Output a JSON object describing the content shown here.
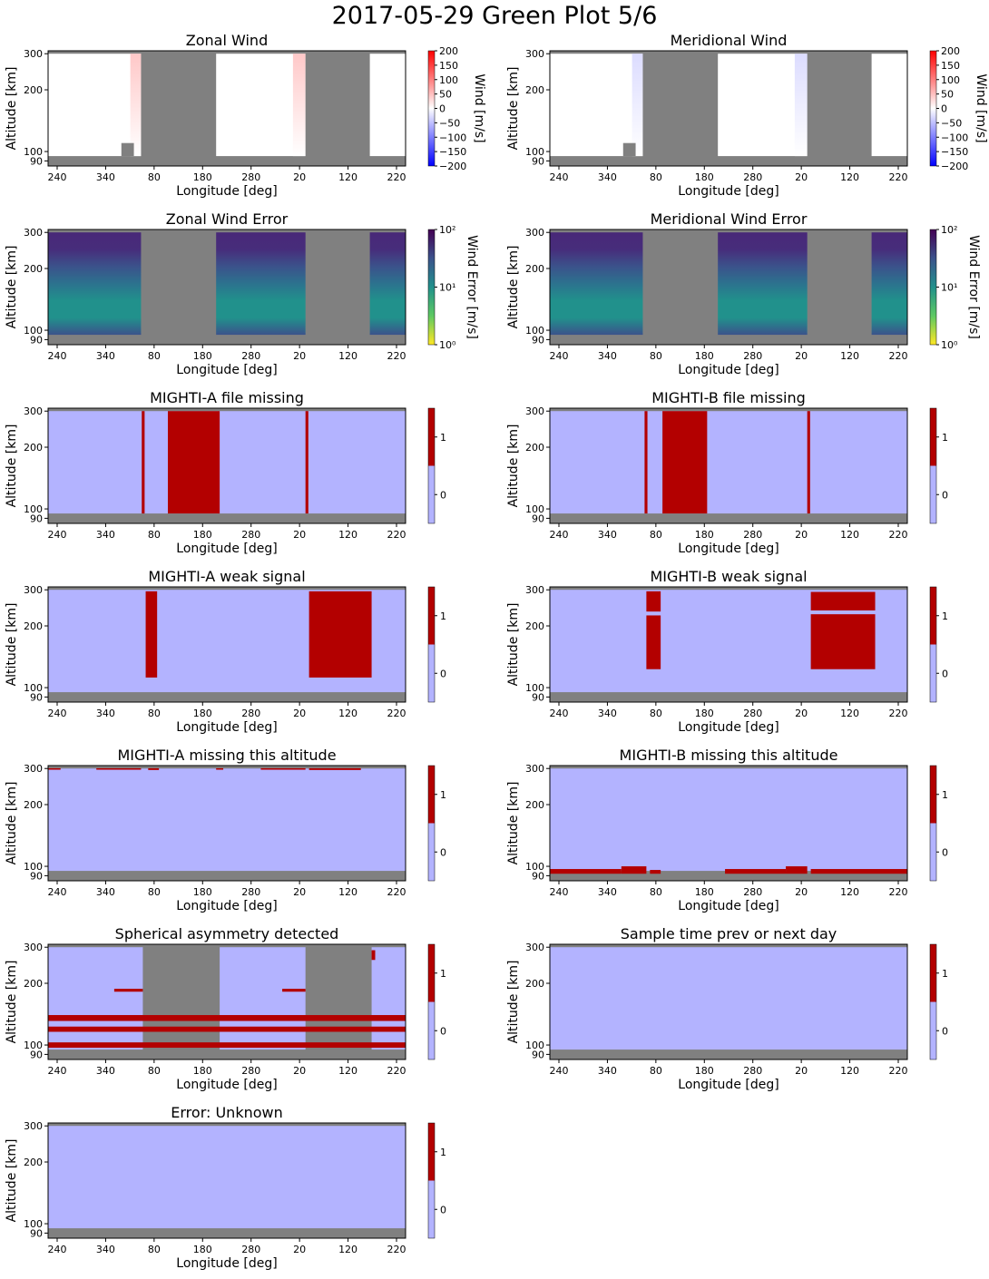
{
  "figure": {
    "title": "2017-05-29 Green Plot 5/6",
    "colors": {
      "missing": "#808080",
      "flag_false": "#b3b3ff",
      "flag_true": "#b30000",
      "wind_base": "#ffffff"
    }
  },
  "chart_data": [
    {
      "id": "zonal-wind",
      "type": "heatmap",
      "title": "Zonal Wind",
      "xlabel": "Longitude [deg]",
      "ylabel": "Altitude [km]",
      "xticklabels": [
        "240",
        "340",
        "80",
        "180",
        "280",
        "20",
        "120",
        "220"
      ],
      "yticklabels": [
        "90",
        "100",
        "200",
        "300"
      ],
      "ylim": [
        85,
        310
      ],
      "colorbar": {
        "kind": "diverging",
        "label": "Wind [m/s]",
        "range": [
          -200,
          200
        ],
        "ticklabels": [
          "200",
          "150",
          "100",
          "50",
          "0",
          "−50",
          "−100",
          "−150",
          "−200"
        ],
        "cmap": [
          "#0000ff",
          "#ffffff",
          "#ff0000"
        ]
      },
      "gaps": [
        [
          0.26,
          0.47
        ],
        [
          0.72,
          0.9
        ]
      ],
      "small_gaps_low": [
        [
          0.205,
          0.24
        ]
      ],
      "tinted_columns": [
        {
          "x": [
            0.23,
            0.26
          ],
          "color": "#ffc8c8"
        },
        {
          "x": [
            0.685,
            0.72
          ],
          "color": "#ffc8c8"
        }
      ]
    },
    {
      "id": "meridional-wind",
      "type": "heatmap",
      "title": "Meridional Wind",
      "xlabel": "Longitude [deg]",
      "ylabel": "Altitude [km]",
      "xticklabels": [
        "240",
        "340",
        "80",
        "180",
        "280",
        "20",
        "120",
        "220"
      ],
      "yticklabels": [
        "90",
        "100",
        "200",
        "300"
      ],
      "ylim": [
        85,
        310
      ],
      "colorbar": {
        "kind": "diverging",
        "label": "Wind [m/s]",
        "range": [
          -200,
          200
        ],
        "ticklabels": [
          "200",
          "150",
          "100",
          "50",
          "0",
          "−50",
          "−100",
          "−150",
          "−200"
        ],
        "cmap": [
          "#0000ff",
          "#ffffff",
          "#ff0000"
        ]
      },
      "gaps": [
        [
          0.26,
          0.47
        ],
        [
          0.72,
          0.9
        ]
      ],
      "small_gaps_low": [
        [
          0.205,
          0.24
        ]
      ],
      "tinted_columns": [
        {
          "x": [
            0.23,
            0.26
          ],
          "color": "#dcdcff"
        },
        {
          "x": [
            0.685,
            0.72
          ],
          "color": "#dcdcff"
        }
      ]
    },
    {
      "id": "zonal-wind-error",
      "type": "heatmap",
      "title": "Zonal Wind Error",
      "xlabel": "Longitude [deg]",
      "ylabel": "Altitude [km]",
      "xticklabels": [
        "240",
        "340",
        "80",
        "180",
        "280",
        "20",
        "120",
        "220"
      ],
      "yticklabels": [
        "90",
        "100",
        "200",
        "300"
      ],
      "ylim": [
        85,
        310
      ],
      "colorbar": {
        "kind": "log",
        "label": "Wind Error [m/s]",
        "range": [
          1,
          100
        ],
        "ticklabels": [
          "10²",
          "10¹",
          "10⁰"
        ],
        "cmap": [
          "#fde725",
          "#5ec962",
          "#21918c",
          "#3b528b",
          "#440154"
        ]
      },
      "gaps": [
        [
          0.26,
          0.47
        ],
        [
          0.72,
          0.9
        ]
      ],
      "green_strips": [
        [
          0.26,
          0.305
        ],
        [
          0.72,
          0.9
        ]
      ]
    },
    {
      "id": "meridional-wind-error",
      "type": "heatmap",
      "title": "Meridional Wind Error",
      "xlabel": "Longitude [deg]",
      "ylabel": "Altitude [km]",
      "xticklabels": [
        "240",
        "340",
        "80",
        "180",
        "280",
        "20",
        "120",
        "220"
      ],
      "yticklabels": [
        "90",
        "100",
        "200",
        "300"
      ],
      "ylim": [
        85,
        310
      ],
      "colorbar": {
        "kind": "log",
        "label": "Wind Error [m/s]",
        "range": [
          1,
          100
        ],
        "ticklabels": [
          "10²",
          "10¹",
          "10⁰"
        ],
        "cmap": [
          "#fde725",
          "#5ec962",
          "#21918c",
          "#3b528b",
          "#440154"
        ]
      },
      "gaps": [
        [
          0.26,
          0.47
        ],
        [
          0.72,
          0.9
        ]
      ],
      "green_strips": [
        [
          0.26,
          0.305
        ],
        [
          0.72,
          0.9
        ]
      ]
    },
    {
      "id": "mighti-a-file-missing",
      "type": "heatmap",
      "title": "MIGHTI-A file missing",
      "xlabel": "Longitude [deg]",
      "ylabel": "Altitude [km]",
      "xticklabels": [
        "240",
        "340",
        "80",
        "180",
        "280",
        "20",
        "120",
        "220"
      ],
      "yticklabels": [
        "90",
        "100",
        "200",
        "300"
      ],
      "ylim": [
        85,
        310
      ],
      "colorbar": {
        "kind": "binary",
        "ticklabels": [
          "1",
          "0"
        ]
      },
      "flag_rects": [
        {
          "x": [
            0.262,
            0.27
          ],
          "alt": [
            95,
            300
          ]
        },
        {
          "x": [
            0.335,
            0.48
          ],
          "alt": [
            95,
            300
          ]
        },
        {
          "x": [
            0.72,
            0.728
          ],
          "alt": [
            95,
            300
          ]
        }
      ]
    },
    {
      "id": "mighti-b-file-missing",
      "type": "heatmap",
      "title": "MIGHTI-B file missing",
      "xlabel": "Longitude [deg]",
      "ylabel": "Altitude [km]",
      "xticklabels": [
        "240",
        "340",
        "80",
        "180",
        "280",
        "20",
        "120",
        "220"
      ],
      "yticklabels": [
        "90",
        "100",
        "200",
        "300"
      ],
      "ylim": [
        85,
        310
      ],
      "colorbar": {
        "kind": "binary",
        "ticklabels": [
          "1",
          "0"
        ]
      },
      "flag_rects": [
        {
          "x": [
            0.265,
            0.273
          ],
          "alt": [
            95,
            300
          ]
        },
        {
          "x": [
            0.315,
            0.44
          ],
          "alt": [
            95,
            300
          ]
        },
        {
          "x": [
            0.72,
            0.728
          ],
          "alt": [
            95,
            300
          ]
        }
      ]
    },
    {
      "id": "mighti-a-weak-signal",
      "type": "heatmap",
      "title": "MIGHTI-A weak signal",
      "xlabel": "Longitude [deg]",
      "ylabel": "Altitude [km]",
      "xticklabels": [
        "240",
        "340",
        "80",
        "180",
        "280",
        "20",
        "120",
        "220"
      ],
      "yticklabels": [
        "90",
        "100",
        "200",
        "300"
      ],
      "ylim": [
        85,
        310
      ],
      "colorbar": {
        "kind": "binary",
        "ticklabels": [
          "1",
          "0"
        ]
      },
      "flag_rects": [
        {
          "x": [
            0.273,
            0.305
          ],
          "alt": [
            112,
            295
          ]
        },
        {
          "x": [
            0.73,
            0.905
          ],
          "alt": [
            112,
            295
          ]
        }
      ]
    },
    {
      "id": "mighti-b-weak-signal",
      "type": "heatmap",
      "title": "MIGHTI-B weak signal",
      "xlabel": "Longitude [deg]",
      "ylabel": "Altitude [km]",
      "xticklabels": [
        "240",
        "340",
        "80",
        "180",
        "280",
        "20",
        "120",
        "220"
      ],
      "yticklabels": [
        "90",
        "100",
        "200",
        "300"
      ],
      "ylim": [
        85,
        310
      ],
      "colorbar": {
        "kind": "binary",
        "ticklabels": [
          "1",
          "0"
        ]
      },
      "flag_rects": [
        {
          "x": [
            0.27,
            0.31
          ],
          "alt": [
            235,
            295
          ]
        },
        {
          "x": [
            0.27,
            0.31
          ],
          "alt": [
            123,
            225
          ]
        },
        {
          "x": [
            0.73,
            0.91
          ],
          "alt": [
            238,
            293
          ]
        },
        {
          "x": [
            0.73,
            0.91
          ],
          "alt": [
            123,
            228
          ]
        }
      ]
    },
    {
      "id": "mighti-a-missing-altitude",
      "type": "heatmap",
      "title": "MIGHTI-A missing this altitude",
      "xlabel": "Longitude [deg]",
      "ylabel": "Altitude [km]",
      "xticklabels": [
        "240",
        "340",
        "80",
        "180",
        "280",
        "20",
        "120",
        "220"
      ],
      "yticklabels": [
        "90",
        "100",
        "200",
        "300"
      ],
      "ylim": [
        85,
        310
      ],
      "colorbar": {
        "kind": "binary",
        "ticklabels": [
          "1",
          "0"
        ]
      },
      "flag_rects": [
        {
          "x": [
            0.0,
            0.035
          ],
          "alt": [
            296,
            301
          ]
        },
        {
          "x": [
            0.135,
            0.26
          ],
          "alt": [
            296,
            301
          ]
        },
        {
          "x": [
            0.28,
            0.31
          ],
          "alt": [
            295,
            301
          ]
        },
        {
          "x": [
            0.47,
            0.49
          ],
          "alt": [
            296,
            301
          ]
        },
        {
          "x": [
            0.595,
            0.72
          ],
          "alt": [
            296,
            301
          ]
        },
        {
          "x": [
            0.73,
            0.875
          ],
          "alt": [
            295,
            301
          ]
        }
      ]
    },
    {
      "id": "mighti-b-missing-altitude",
      "type": "heatmap",
      "title": "MIGHTI-B missing this altitude",
      "xlabel": "Longitude [deg]",
      "ylabel": "Altitude [km]",
      "xticklabels": [
        "240",
        "340",
        "80",
        "180",
        "280",
        "20",
        "120",
        "220"
      ],
      "yticklabels": [
        "90",
        "100",
        "200",
        "300"
      ],
      "ylim": [
        85,
        310
      ],
      "colorbar": {
        "kind": "binary",
        "ticklabels": [
          "1",
          "0"
        ]
      },
      "flag_rects": [
        {
          "x": [
            0.0,
            0.2
          ],
          "alt": [
            92,
            97
          ]
        },
        {
          "x": [
            0.2,
            0.27
          ],
          "alt": [
            92,
            100
          ]
        },
        {
          "x": [
            0.28,
            0.31
          ],
          "alt": [
            92,
            96
          ]
        },
        {
          "x": [
            0.49,
            0.66
          ],
          "alt": [
            92,
            97
          ]
        },
        {
          "x": [
            0.66,
            0.72
          ],
          "alt": [
            92,
            100
          ]
        },
        {
          "x": [
            0.73,
            1.0
          ],
          "alt": [
            92,
            97
          ]
        }
      ]
    },
    {
      "id": "spherical-asymmetry",
      "type": "heatmap",
      "title": "Spherical asymmetry detected",
      "xlabel": "Longitude [deg]",
      "ylabel": "Altitude [km]",
      "xticklabels": [
        "240",
        "340",
        "80",
        "180",
        "280",
        "20",
        "120",
        "220"
      ],
      "yticklabels": [
        "90",
        "100",
        "200",
        "300"
      ],
      "ylim": [
        85,
        310
      ],
      "gaps": [
        [
          0.265,
          0.48
        ],
        [
          0.72,
          0.905
        ]
      ],
      "colorbar": {
        "kind": "binary",
        "ticklabels": [
          "1",
          "0"
        ]
      },
      "flag_rects": [
        {
          "x": [
            0.0,
            1.0
          ],
          "alt": [
            97,
            103
          ]
        },
        {
          "x": [
            0.0,
            1.0
          ],
          "alt": [
            116,
            123
          ]
        },
        {
          "x": [
            0.0,
            1.0
          ],
          "alt": [
            131,
            140
          ]
        },
        {
          "x": [
            0.185,
            0.265
          ],
          "alt": [
            182,
            188
          ]
        },
        {
          "x": [
            0.655,
            0.72
          ],
          "alt": [
            182,
            188
          ]
        },
        {
          "x": [
            0.905,
            0.915
          ],
          "alt": [
            260,
            290
          ]
        }
      ]
    },
    {
      "id": "sample-time-prev-next-day",
      "type": "heatmap",
      "title": "Sample time prev or next day",
      "xlabel": "Longitude [deg]",
      "ylabel": "Altitude [km]",
      "xticklabels": [
        "240",
        "340",
        "80",
        "180",
        "280",
        "20",
        "120",
        "220"
      ],
      "yticklabels": [
        "90",
        "100",
        "200",
        "300"
      ],
      "ylim": [
        85,
        310
      ],
      "colorbar": {
        "kind": "binary",
        "ticklabels": [
          "1",
          "0"
        ]
      },
      "flag_rects": []
    },
    {
      "id": "error-unknown",
      "type": "heatmap",
      "title": "Error: Unknown",
      "xlabel": "Longitude [deg]",
      "ylabel": "Altitude [km]",
      "xticklabels": [
        "240",
        "340",
        "80",
        "180",
        "280",
        "20",
        "120",
        "220"
      ],
      "yticklabels": [
        "90",
        "100",
        "200",
        "300"
      ],
      "ylim": [
        85,
        310
      ],
      "colorbar": {
        "kind": "binary",
        "ticklabels": [
          "1",
          "0"
        ]
      },
      "flag_rects": []
    }
  ]
}
